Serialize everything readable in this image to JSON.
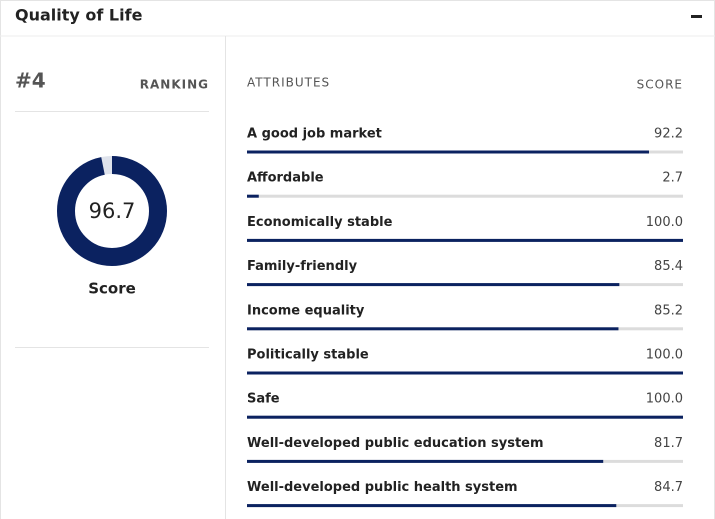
{
  "header": {
    "title": "Quality of Life"
  },
  "ranking": {
    "rank": "#4",
    "label": "RANKING"
  },
  "overall": {
    "value": 96.7,
    "label": "Score",
    "xlim": [
      0,
      100
    ]
  },
  "attributes": {
    "column_name": "ATTRIBUTES",
    "column_score": "SCORE",
    "xlim": [
      0,
      100
    ],
    "rows": [
      {
        "name": "A good job market",
        "value": 92.2,
        "value_label": "92.2"
      },
      {
        "name": "Affordable",
        "value": 2.7,
        "value_label": "2.7"
      },
      {
        "name": "Economically stable",
        "value": 100,
        "value_label": "100.0"
      },
      {
        "name": "Family-friendly",
        "value": 85.4,
        "value_label": "85.4"
      },
      {
        "name": "Income equality",
        "value": 85.2,
        "value_label": "85.2"
      },
      {
        "name": "Politically stable",
        "value": 100,
        "value_label": "100.0"
      },
      {
        "name": "Safe",
        "value": 100,
        "value_label": "100.0"
      },
      {
        "name": "Well-developed public education system",
        "value": 81.7,
        "value_label": "81.7"
      },
      {
        "name": "Well-developed public health system",
        "value": 84.7,
        "value_label": "84.7"
      }
    ]
  }
}
